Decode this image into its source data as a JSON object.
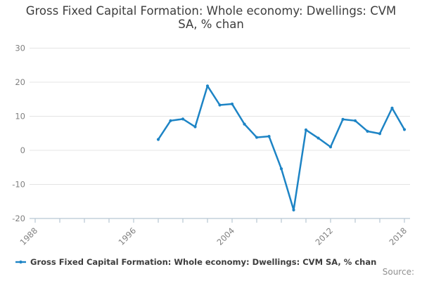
{
  "title": "Gross Fixed Capital Formation: Whole economy: Dwellings: CVM SA, % chan",
  "legend": {
    "label": "Gross Fixed Capital Formation: Whole economy: Dwellings: CVM SA, % chan"
  },
  "source_label": "Source:",
  "colors": {
    "line": "#1d84c5",
    "grid": "#e4e4e4",
    "axis": "#b7c6d3",
    "tick_label": "#7f7f7f",
    "title_text": "#3d3d3d",
    "source_text": "#8f8f8f"
  },
  "chart_data": {
    "type": "line",
    "title": "Gross Fixed Capital Formation: Whole economy: Dwellings: CVM SA, % chan",
    "xlabel": "",
    "ylabel": "",
    "x": [
      1998,
      1999,
      2000,
      2001,
      2002,
      2003,
      2004,
      2005,
      2006,
      2007,
      2008,
      2009,
      2010,
      2011,
      2012,
      2013,
      2014,
      2015,
      2016,
      2017,
      2018
    ],
    "values": [
      3.2,
      8.7,
      9.2,
      6.9,
      18.9,
      13.3,
      13.6,
      7.7,
      3.8,
      4.1,
      -5.4,
      -17.5,
      6.0,
      3.6,
      1.0,
      9.1,
      8.7,
      5.6,
      4.9,
      12.4,
      6.1
    ],
    "series_name": "Gross Fixed Capital Formation: Whole economy: Dwellings: CVM SA, % chan",
    "ylim": [
      -20,
      30
    ],
    "y_ticks": [
      30,
      20,
      10,
      0,
      -10,
      -20
    ],
    "x_axis": {
      "start": 1988,
      "end": 2018,
      "tick_step": 2,
      "labeled_ticks": [
        1988,
        1996,
        2004,
        2012,
        2018
      ]
    },
    "grid": "horizontal",
    "markers": true,
    "legend_position": "bottom-left"
  }
}
